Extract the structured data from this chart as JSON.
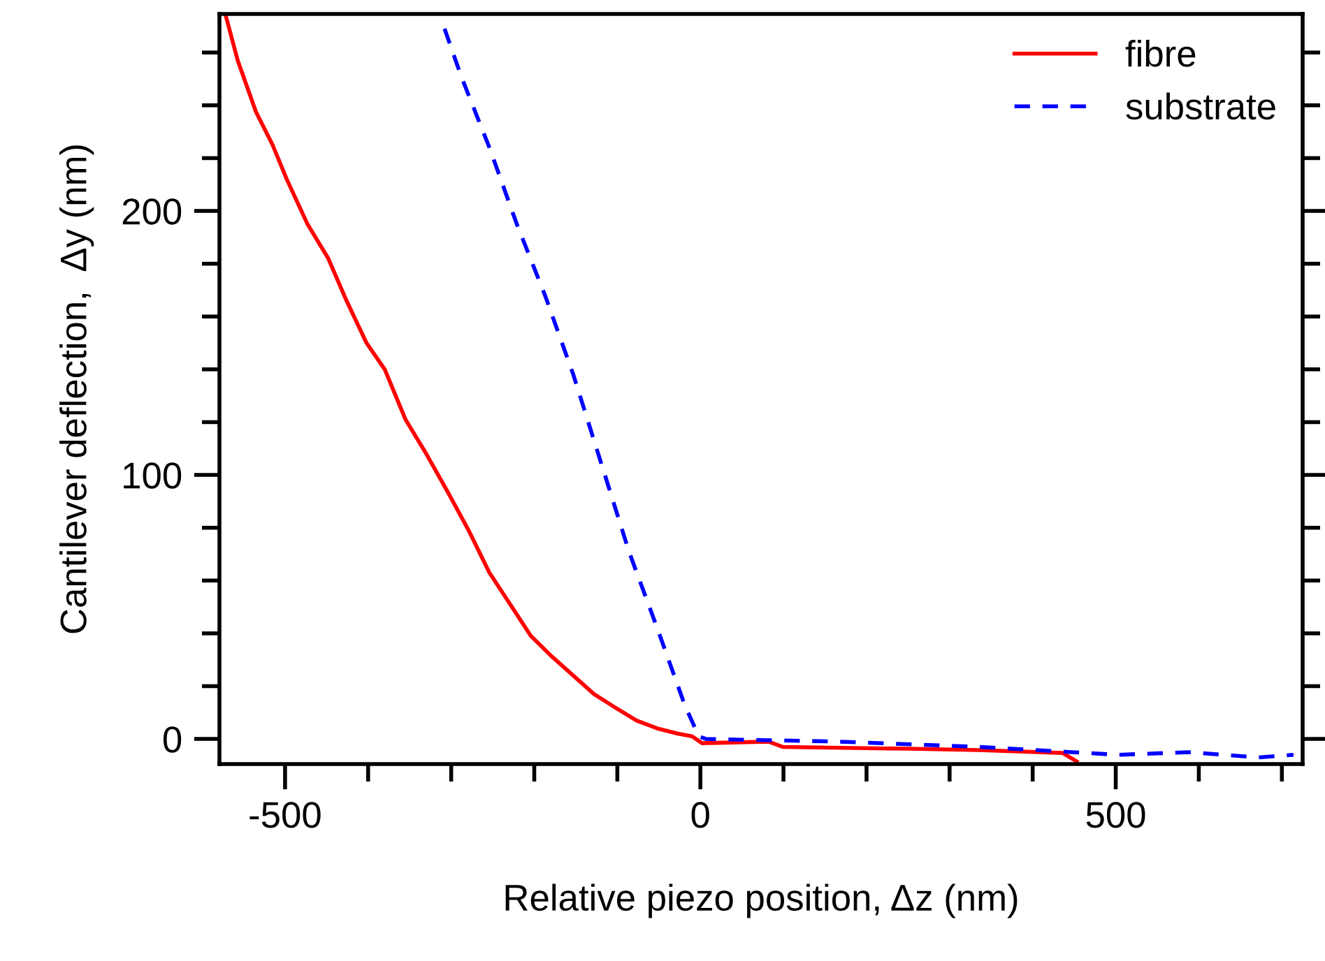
{
  "chart_data": {
    "type": "line",
    "xlabel": "Relative piezo position, Δz (nm)",
    "ylabel": "Cantilever deflection,  Δy (nm)",
    "xlim": [
      -579,
      725
    ],
    "ylim": [
      -9.5,
      274.6
    ],
    "xticks": [
      {
        "value": -500,
        "label": "-500"
      },
      {
        "value": -400,
        "label": null
      },
      {
        "value": -300,
        "label": null
      },
      {
        "value": -200,
        "label": null
      },
      {
        "value": -100,
        "label": null
      },
      0,
      {
        "value": 100,
        "label": null
      },
      {
        "value": 200,
        "label": null
      },
      {
        "value": 300,
        "label": null
      },
      {
        "value": 400,
        "label": null
      },
      500,
      {
        "value": 600,
        "label": null
      },
      {
        "value": 700,
        "label": null
      }
    ],
    "yticks": [
      0,
      {
        "value": 20,
        "label": null
      },
      {
        "value": 40,
        "label": null
      },
      {
        "value": 60,
        "label": null
      },
      {
        "value": 80,
        "label": null
      },
      100,
      {
        "value": 120,
        "label": null
      },
      {
        "value": 140,
        "label": null
      },
      {
        "value": 160,
        "label": null
      },
      {
        "value": 180,
        "label": null
      },
      200,
      {
        "value": 220,
        "label": null
      },
      {
        "value": 240,
        "label": null
      },
      {
        "value": 260,
        "label": null
      }
    ],
    "grid": false,
    "legend": "top right",
    "marker": "none",
    "series": [
      {
        "name": "fibre",
        "color": "#ff0000",
        "line_style": "solid",
        "x": [
          -571,
          -557,
          -535,
          -515,
          -498,
          -473,
          -448,
          -426,
          -402,
          -380,
          -355,
          -330,
          -305,
          -279,
          -254,
          -229,
          -204,
          -178,
          -153,
          -128,
          -103,
          -77,
          -52,
          -27,
          -10,
          2,
          82,
          99,
          251,
          335,
          436,
          453
        ],
        "values": [
          273.5,
          257,
          237.5,
          225,
          212,
          195,
          182,
          166,
          150,
          140,
          121,
          108,
          94,
          79,
          63,
          51,
          39,
          31,
          24,
          17,
          12,
          7,
          4,
          2,
          1,
          -1.6,
          -1,
          -3,
          -3.7,
          -4.2,
          -5.3,
          -8.5
        ]
      },
      {
        "name": "substrate",
        "color": "#0000ff",
        "line_style": "dashed",
        "x": [
          -308,
          -288,
          -254,
          -221,
          -187,
          -153,
          -120,
          -86,
          -52,
          -19,
          -2,
          7,
          167,
          335,
          503,
          588,
          672,
          714
        ],
        "values": [
          269,
          251,
          224,
          195,
          168,
          138,
          105,
          71,
          42,
          13,
          1,
          0,
          -1,
          -3,
          -6,
          -5,
          -7,
          -6
        ]
      }
    ]
  }
}
